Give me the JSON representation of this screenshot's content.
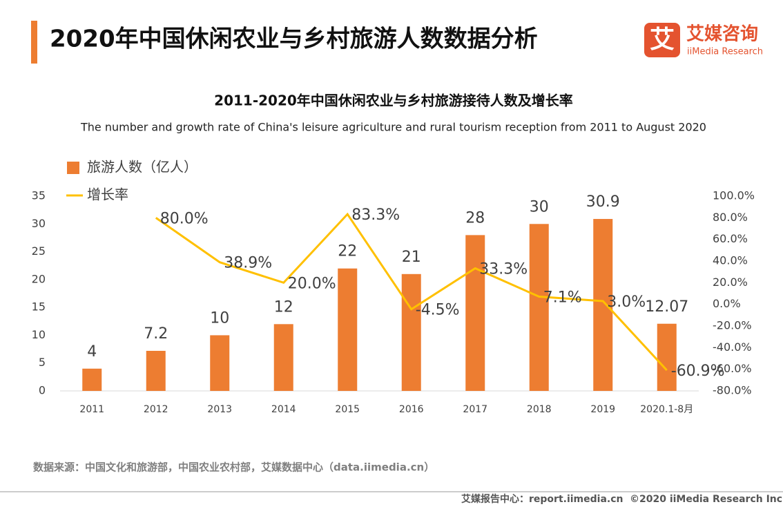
{
  "header": {
    "title": "2020年中国休闲农业与乡村旅游人数数据分析"
  },
  "logo": {
    "icon": "艾",
    "name": "艾媒咨询",
    "sub": "iiMedia Research"
  },
  "chart_data": {
    "type": "bar-line",
    "title": "2011-2020年中国休闲农业与乡村旅游接待人数及增长率",
    "subtitle": "The number and growth rate of China's leisure agriculture and rural tourism reception from 2011 to August 2020",
    "categories": [
      "2011",
      "2012",
      "2013",
      "2014",
      "2015",
      "2016",
      "2017",
      "2018",
      "2019",
      "2020.1-8月"
    ],
    "series": [
      {
        "name": "旅游人数（亿人）",
        "type": "bar",
        "color": "#ed7d31",
        "values": [
          4,
          7.2,
          10,
          12,
          22,
          21,
          28,
          30,
          30.9,
          12.07
        ]
      },
      {
        "name": "增长率",
        "type": "line",
        "axis": "y2",
        "color": "#ffc000",
        "values": [
          null,
          80.0,
          38.9,
          20.0,
          83.3,
          -4.5,
          33.3,
          7.1,
          3.0,
          -60.9
        ],
        "value_labels": [
          null,
          "80.0%",
          "38.9%",
          "20.0%",
          "83.3%",
          "-4.5%",
          "33.3%",
          "7.1%",
          "3.0%",
          "-60.9%"
        ]
      }
    ],
    "ylim": [
      0,
      35
    ],
    "yticks": [
      0,
      5,
      10,
      15,
      20,
      25,
      30,
      35
    ],
    "y2lim": [
      -80,
      100
    ],
    "y2ticks": [
      {
        "value": -80,
        "label": "-80.0%"
      },
      {
        "value": -60,
        "label": "-60.0%"
      },
      {
        "value": -40,
        "label": "-40.0%"
      },
      {
        "value": -20,
        "label": "-20.0%"
      },
      {
        "value": 0,
        "label": "0.0%"
      },
      {
        "value": 20,
        "label": "20.0%"
      },
      {
        "value": 40,
        "label": "40.0%"
      },
      {
        "value": 60,
        "label": "60.0%"
      },
      {
        "value": 80,
        "label": "80.0%"
      },
      {
        "value": 100,
        "label": "100.0%"
      }
    ],
    "legend": "top-left"
  },
  "source": "数据来源：中国文化和旅游部，中国农业农村部，艾媒数据中心（data.iimedia.cn）",
  "footer": {
    "center": "艾媒报告中心：report.iimedia.cn",
    "copyright": "©2020  iiMedia Research  Inc"
  }
}
